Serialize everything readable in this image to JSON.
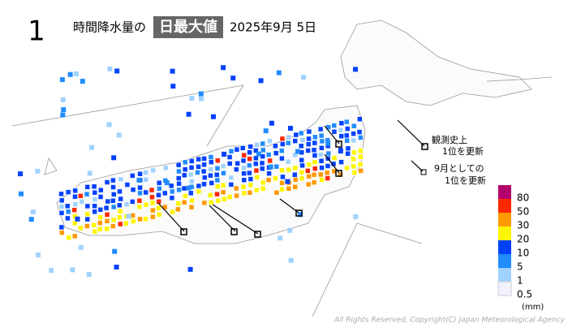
{
  "header": {
    "number": "1",
    "title": "時間降水量の",
    "highlight": "日最大値",
    "date": "2025年9月 5日"
  },
  "markers": [
    {
      "lines": [
        "観測史上",
        "1位を更新"
      ]
    },
    {
      "lines": [
        "9月としての",
        "1位を更新"
      ]
    }
  ],
  "legend": {
    "items": [
      {
        "label": "80",
        "color": "#b4006a"
      },
      {
        "label": "50",
        "color": "#ff2800"
      },
      {
        "label": "30",
        "color": "#ff9900"
      },
      {
        "label": "20",
        "color": "#fff500"
      },
      {
        "label": "10",
        "color": "#0041ff"
      },
      {
        "label": "5",
        "color": "#218cff"
      },
      {
        "label": "1",
        "color": "#a0d2ff"
      },
      {
        "label": "0.5",
        "color": "#f2f2ff"
      }
    ],
    "unit": "(mm)"
  },
  "copyright": "All Rights Reserved, Copyright(C) Japan Meteorological Agency"
}
